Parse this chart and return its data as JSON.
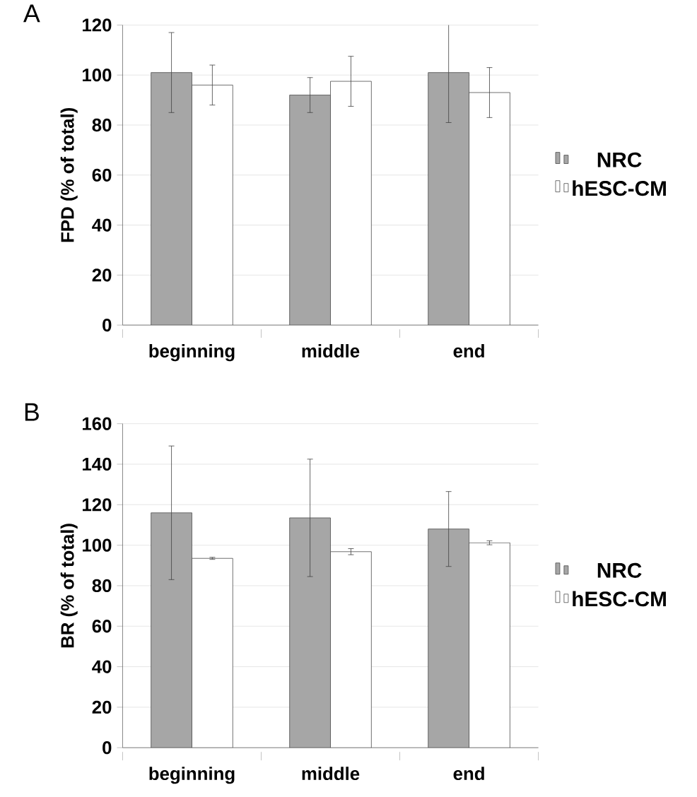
{
  "chart_data": [
    {
      "type": "bar",
      "title": "A",
      "ylabel": "FPD (% of total)",
      "categories": [
        "beginning",
        "middle",
        "end"
      ],
      "series": [
        {
          "name": "NRC",
          "color": "#a6a6a6",
          "values": [
            101,
            92,
            101
          ],
          "errors": [
            16,
            7,
            20
          ]
        },
        {
          "name": "hESC-CM",
          "color": "#ffffff",
          "values": [
            96,
            97.5,
            93
          ],
          "errors": [
            8,
            10,
            10
          ]
        }
      ],
      "ylim": [
        0,
        120
      ],
      "yticks": [
        0,
        20,
        40,
        60,
        80,
        100,
        120
      ],
      "grid": "y",
      "legend": "right"
    },
    {
      "type": "bar",
      "title": "B",
      "ylabel": "BR (% of total)",
      "categories": [
        "beginning",
        "middle",
        "end"
      ],
      "series": [
        {
          "name": "NRC",
          "color": "#a6a6a6",
          "values": [
            116,
            113.5,
            108
          ],
          "errors": [
            33,
            29,
            18.5
          ]
        },
        {
          "name": "hESC-CM",
          "color": "#ffffff",
          "values": [
            93.5,
            96.8,
            101.2
          ],
          "errors": [
            0.5,
            1.5,
            1
          ]
        }
      ],
      "ylim": [
        0,
        160
      ],
      "yticks": [
        0,
        20,
        40,
        60,
        80,
        100,
        120,
        140,
        160
      ],
      "grid": "y",
      "legend": "right"
    }
  ]
}
